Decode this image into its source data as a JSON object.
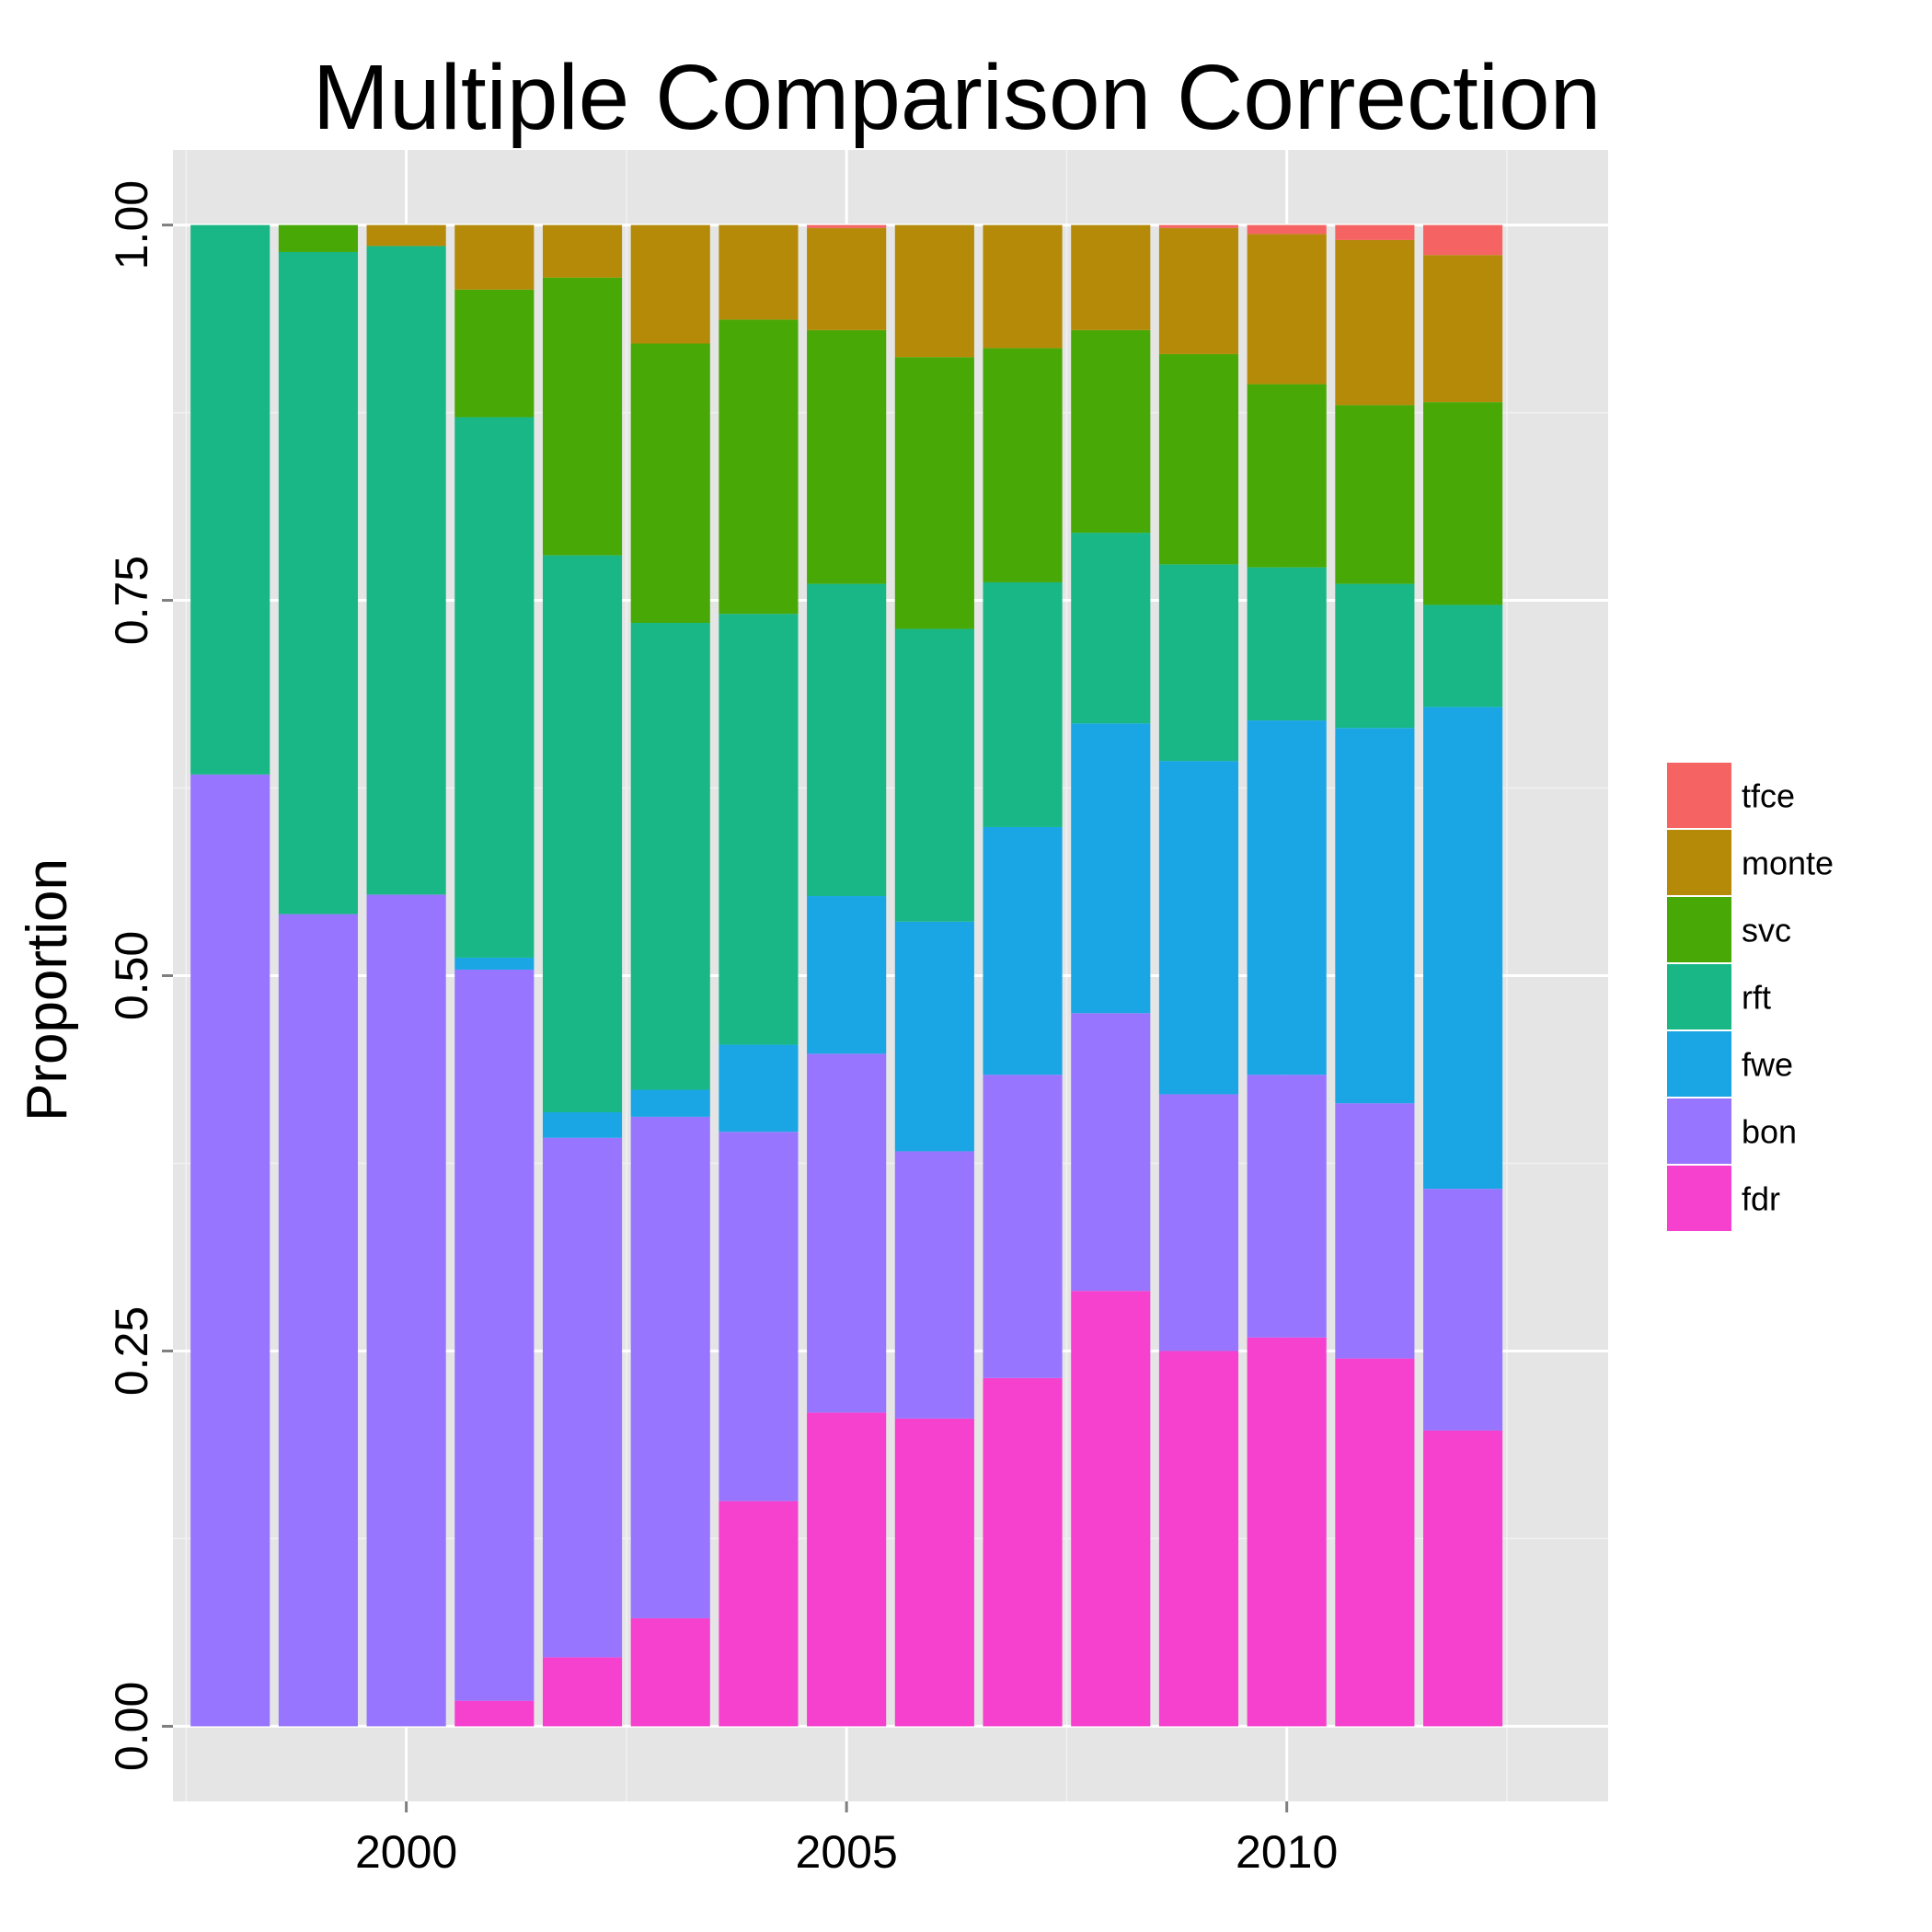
{
  "chart_data": {
    "type": "bar",
    "stacked": true,
    "title": "Multiple Comparison Correction",
    "xlabel": "",
    "ylabel": "Proportion",
    "x": [
      1998,
      1999,
      2000,
      2001,
      2002,
      2003,
      2004,
      2005,
      2006,
      2007,
      2008,
      2009,
      2010,
      2011,
      2012
    ],
    "xlim": [
      1997.35,
      2013.65
    ],
    "ylim": [
      -0.05,
      1.05
    ],
    "x_ticks": [
      2000,
      2005,
      2010
    ],
    "x_tick_labels": [
      "2000",
      "2005",
      "2010"
    ],
    "y_ticks": [
      0,
      0.25,
      0.5,
      0.75,
      1
    ],
    "y_tick_labels": [
      "0.00",
      "0.25",
      "0.50",
      "0.75",
      "1.00"
    ],
    "grid": true,
    "legend_position": "right",
    "series": [
      {
        "name": "fdr",
        "color": "#F8766D",
        "fill": "#F640CE",
        "values": [
          0.0,
          0.0,
          0.0,
          0.017,
          0.046,
          0.072,
          0.15,
          0.209,
          0.205,
          0.232,
          0.29,
          0.25,
          0.259,
          0.245,
          0.197
        ]
      },
      {
        "name": "bon",
        "fill": "#9775FF",
        "values": [
          0.634,
          0.541,
          0.554,
          0.487,
          0.346,
          0.334,
          0.246,
          0.239,
          0.178,
          0.202,
          0.185,
          0.171,
          0.175,
          0.17,
          0.161
        ]
      },
      {
        "name": "fwe",
        "fill": "#1AA6E5",
        "values": [
          0.0,
          0.0,
          0.0,
          0.008,
          0.017,
          0.018,
          0.058,
          0.105,
          0.153,
          0.165,
          0.193,
          0.222,
          0.236,
          0.25,
          0.321
        ]
      },
      {
        "name": "rft",
        "fill": "#18B785",
        "values": [
          0.366,
          0.441,
          0.432,
          0.36,
          0.371,
          0.311,
          0.287,
          0.208,
          0.195,
          0.163,
          0.127,
          0.131,
          0.102,
          0.096,
          0.068
        ]
      },
      {
        "name": "svc",
        "fill": "#48A806",
        "values": [
          0.0,
          0.018,
          0.0,
          0.085,
          0.185,
          0.186,
          0.196,
          0.169,
          0.181,
          0.156,
          0.135,
          0.14,
          0.122,
          0.119,
          0.135
        ]
      },
      {
        "name": "monte",
        "fill": "#B48A08",
        "values": [
          0.0,
          0.0,
          0.014,
          0.043,
          0.035,
          0.079,
          0.063,
          0.068,
          0.088,
          0.082,
          0.07,
          0.084,
          0.1,
          0.11,
          0.098
        ]
      },
      {
        "name": "tfce",
        "fill": "#F56462",
        "values": [
          0.0,
          0.0,
          0.0,
          0.0,
          0.0,
          0.0,
          0.0,
          0.002,
          0.0,
          0.0,
          0.0,
          0.002,
          0.006,
          0.01,
          0.02
        ]
      }
    ],
    "legend_order": [
      "tfce",
      "monte",
      "svc",
      "rft",
      "fwe",
      "bon",
      "fdr"
    ]
  }
}
